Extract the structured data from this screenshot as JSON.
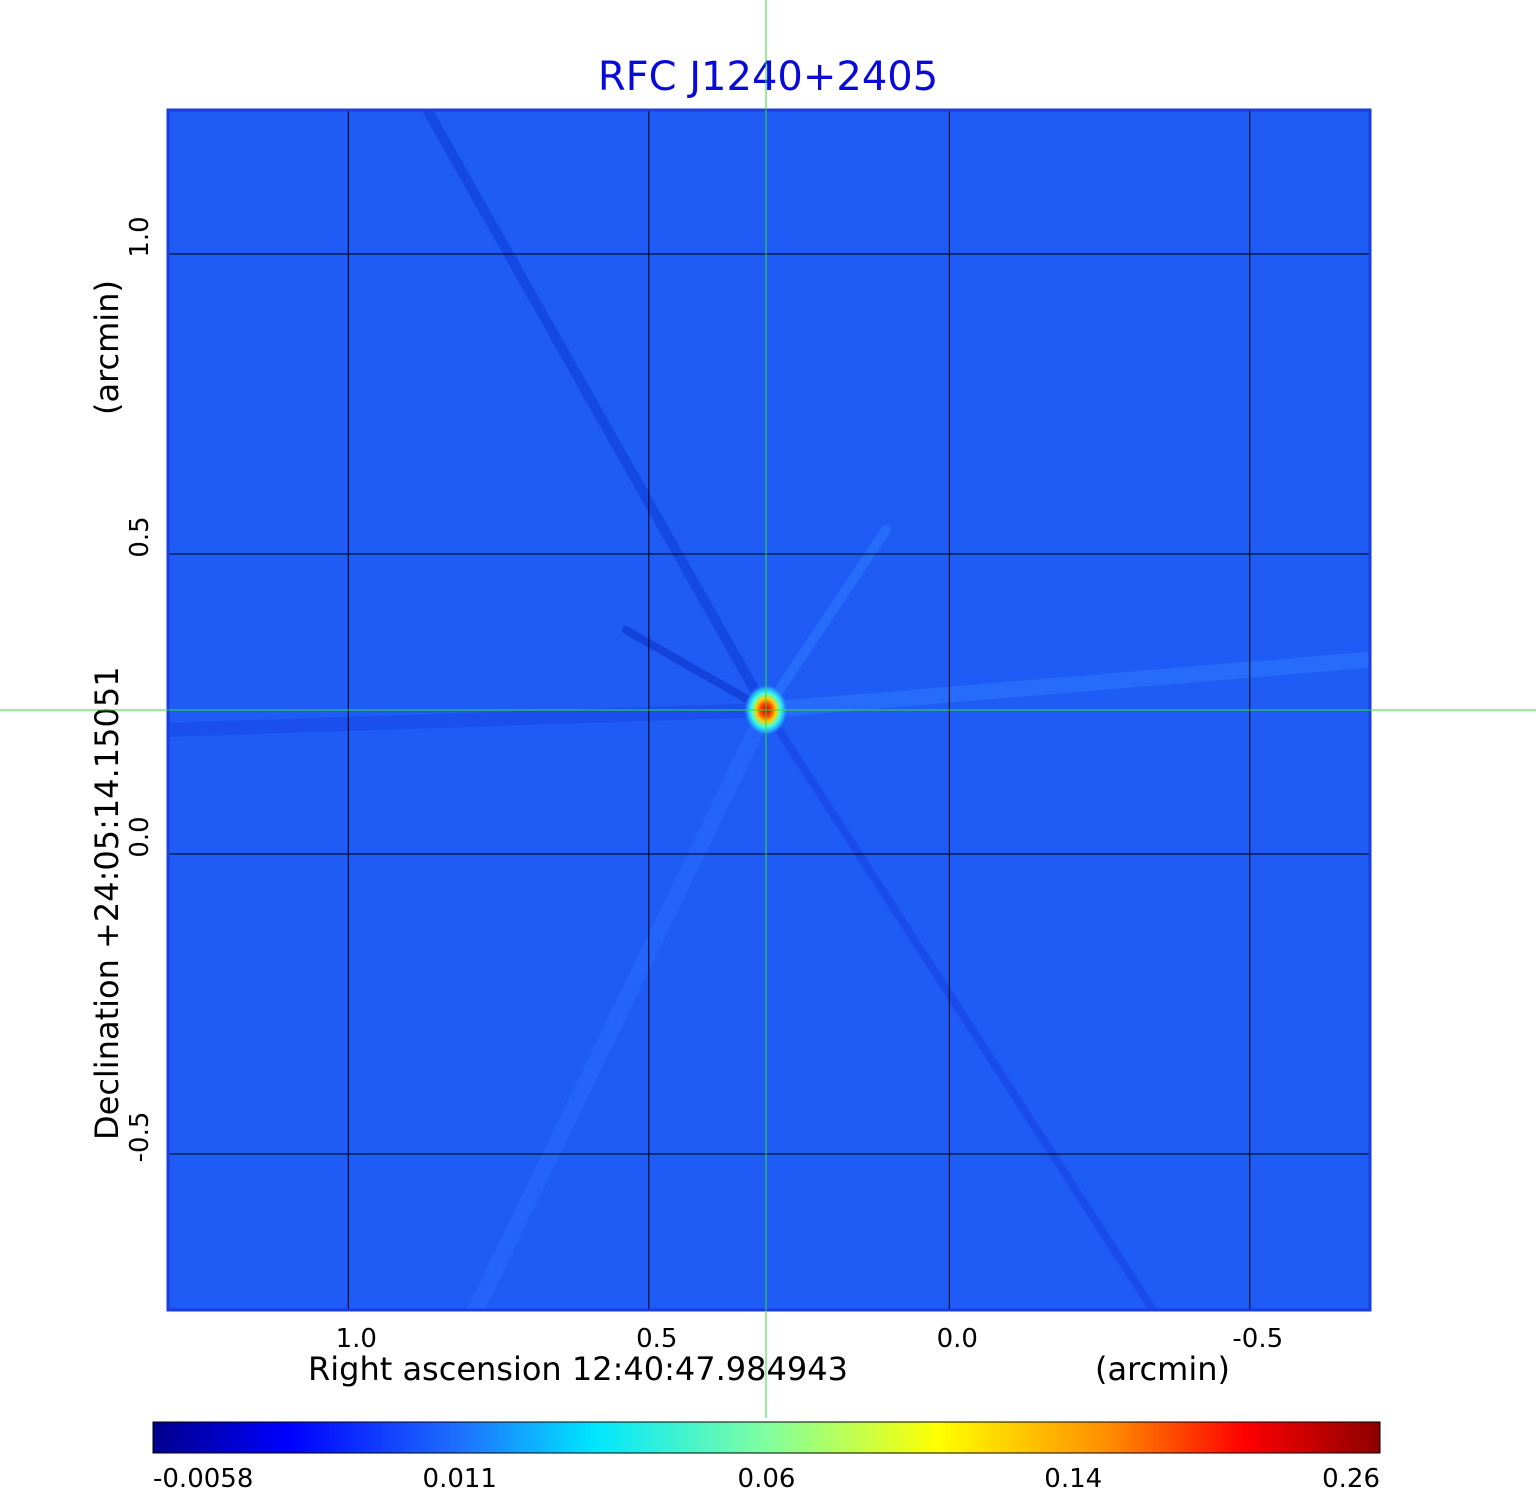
{
  "chart_data": {
    "type": "heatmap",
    "title": "RFC J1240+2405",
    "xlabel": "Right ascension  12:40:47.984943",
    "xunit": "(arcmin)",
    "ylabel": "Declination  +24:05:14.15051",
    "yunit": "(arcmin)",
    "x_ticks": [
      1.0,
      0.5,
      0.0,
      -0.5
    ],
    "x_tick_labels": [
      "1.0",
      "0.5",
      "0.0",
      "-0.5"
    ],
    "y_ticks": [
      1.0,
      0.5,
      0.0,
      -0.5
    ],
    "y_tick_labels": [
      "1.0",
      "0.5",
      "0.0",
      "-0.5"
    ],
    "xlim": [
      1.3,
      -0.7
    ],
    "ylim": [
      -0.76,
      1.24
    ],
    "x_reversed": true,
    "grid": true,
    "crosshair": {
      "x": 0.305,
      "y": 0.24,
      "color": "#33dd33"
    },
    "peak": {
      "x": 0.305,
      "y": 0.24,
      "value": 0.26
    },
    "colorbar": {
      "colormap": "jet",
      "tick_values": [
        -0.0058,
        0.011,
        0.06,
        0.14,
        0.26
      ],
      "tick_labels": [
        "-0.0058",
        "0.011",
        "0.06",
        "0.14",
        "0.26"
      ],
      "placement": "bottom"
    },
    "background_color": "#1f5bf5"
  }
}
